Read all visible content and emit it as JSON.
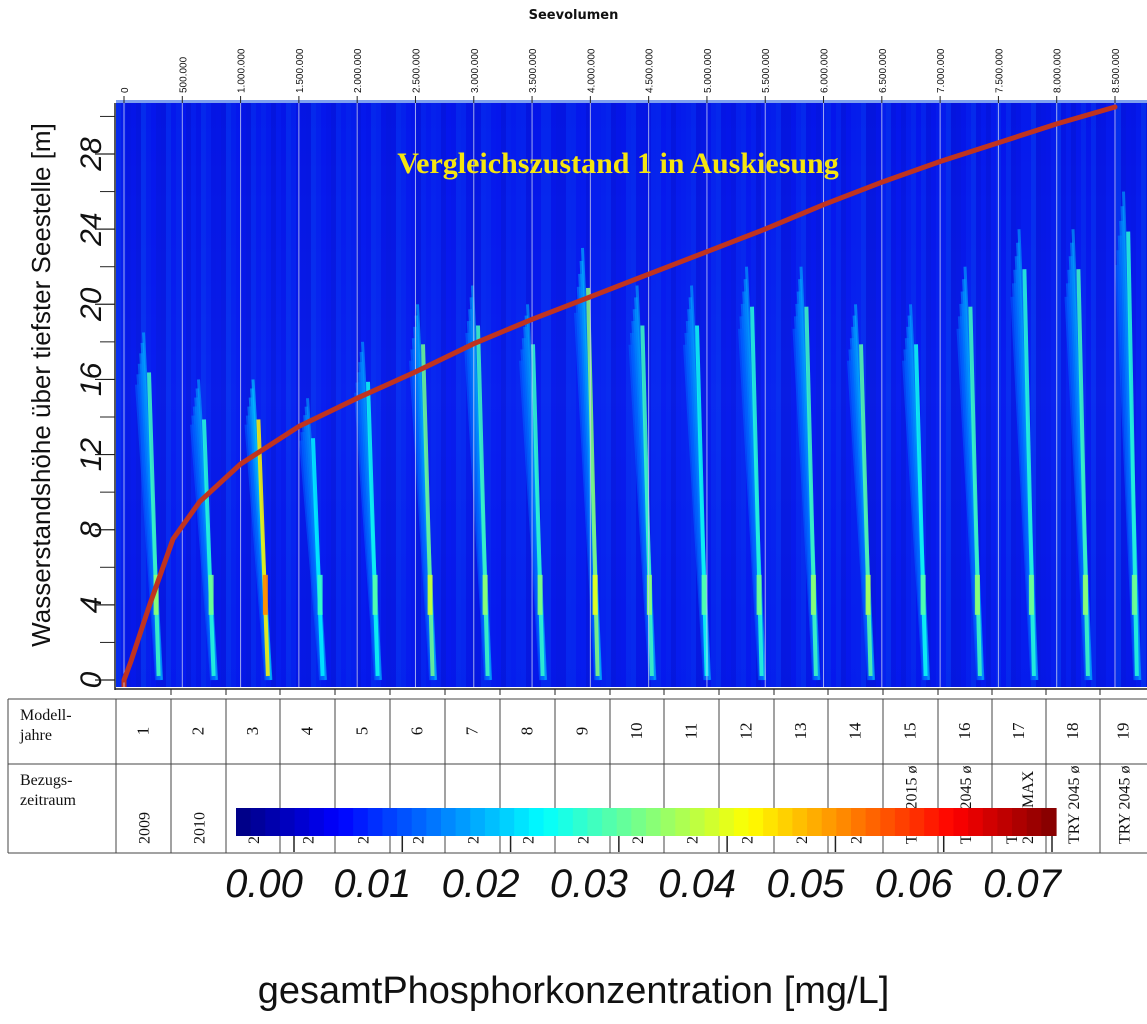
{
  "chart_data": {
    "type": "heatmap",
    "title": "Vergleichszustand 1 in Auskiesung",
    "x2label": "Seevolumen",
    "ylabel": "Wasserstandshöhe über tiefster Seestelle [m]",
    "ylim": [
      -0.5,
      31
    ],
    "y_ticks": [
      "0",
      "4",
      "8",
      "12",
      "16",
      "20",
      "24",
      "28"
    ],
    "x2lim": [
      0,
      8500000
    ],
    "x2_ticks": [
      "0",
      "500.000",
      "1.000.000",
      "1.500.000",
      "2.000.000",
      "2.500.000",
      "3.000.000",
      "3.500.000",
      "4.000.000",
      "4.500.000",
      "5.000.000",
      "5.500.000",
      "6.000.000",
      "6.500.000",
      "7.000.000",
      "7.500.000",
      "8.000.000",
      "8.500.000"
    ],
    "colorbar": {
      "label": "gesamtPhosphorkonzentration [mg/L]",
      "min": 0.0,
      "max": 0.07,
      "ticks": [
        "0.00",
        "0.01",
        "0.02",
        "0.03",
        "0.04",
        "0.05",
        "0.06",
        "0.07"
      ]
    },
    "table": {
      "row1_header": "Modell-\njahre",
      "row2_header": "Bezugs-\nzeitraum",
      "modell_jahre": [
        "1",
        "2",
        "3",
        "4",
        "5",
        "6",
        "7",
        "8",
        "9",
        "10",
        "11",
        "12",
        "13",
        "14",
        "15",
        "16",
        "17",
        "18",
        "19"
      ],
      "bezugszeitraum": [
        "2009",
        "2010",
        "2011",
        "2012",
        "2013",
        "2014",
        "2015",
        "2016",
        "2017",
        "2018",
        "2019",
        "2020",
        "2021",
        "2022",
        "TRY 2015 ø",
        "TRY 2045 ø",
        "TRY\n2045 MAX",
        "TRY 2045 ø",
        "TRY 2045 ø"
      ]
    },
    "series": [
      {
        "x_unit": "Seevolumen",
        "y_unit": "Wasserstandshöhe [m]",
        "points": [
          [
            0,
            0
          ],
          [
            60000,
            1
          ],
          [
            220000,
            4
          ],
          [
            420000,
            7.5
          ],
          [
            650000,
            9.5
          ],
          [
            1000000,
            11.5
          ],
          [
            1500000,
            13.5
          ],
          [
            2000000,
            15
          ],
          [
            2500000,
            16.4
          ],
          [
            3000000,
            17.9
          ],
          [
            3500000,
            19.2
          ],
          [
            4000000,
            20.4
          ],
          [
            4500000,
            21.6
          ],
          [
            5000000,
            22.8
          ],
          [
            5500000,
            24
          ],
          [
            6000000,
            25.3
          ],
          [
            6500000,
            26.5
          ],
          [
            7000000,
            27.6
          ],
          [
            7500000,
            28.6
          ],
          [
            8000000,
            29.6
          ],
          [
            8500000,
            30.5
          ]
        ]
      }
    ],
    "concentration_pulses": [
      {
        "year": 1,
        "peak": 0.036,
        "top": 18.5
      },
      {
        "year": 2,
        "peak": 0.034,
        "top": 16
      },
      {
        "year": 3,
        "peak": 0.052,
        "top": 16
      },
      {
        "year": 4,
        "peak": 0.03,
        "top": 15
      },
      {
        "year": 5,
        "peak": 0.032,
        "top": 18
      },
      {
        "year": 6,
        "peak": 0.04,
        "top": 20
      },
      {
        "year": 7,
        "peak": 0.036,
        "top": 21
      },
      {
        "year": 8,
        "peak": 0.035,
        "top": 20
      },
      {
        "year": 9,
        "peak": 0.042,
        "top": 23
      },
      {
        "year": 10,
        "peak": 0.036,
        "top": 21
      },
      {
        "year": 11,
        "peak": 0.032,
        "top": 21
      },
      {
        "year": 12,
        "peak": 0.034,
        "top": 22
      },
      {
        "year": 13,
        "peak": 0.036,
        "top": 22
      },
      {
        "year": 14,
        "peak": 0.038,
        "top": 20
      },
      {
        "year": 15,
        "peak": 0.032,
        "top": 20
      },
      {
        "year": 16,
        "peak": 0.036,
        "top": 22
      },
      {
        "year": 17,
        "peak": 0.034,
        "top": 24
      },
      {
        "year": 18,
        "peak": 0.036,
        "top": 24
      },
      {
        "year": 19,
        "peak": 0.034,
        "top": 26
      }
    ],
    "colors": {
      "curve": "#c0331f",
      "title": "#f5e511",
      "background": "#1238d8"
    },
    "grid": true
  }
}
